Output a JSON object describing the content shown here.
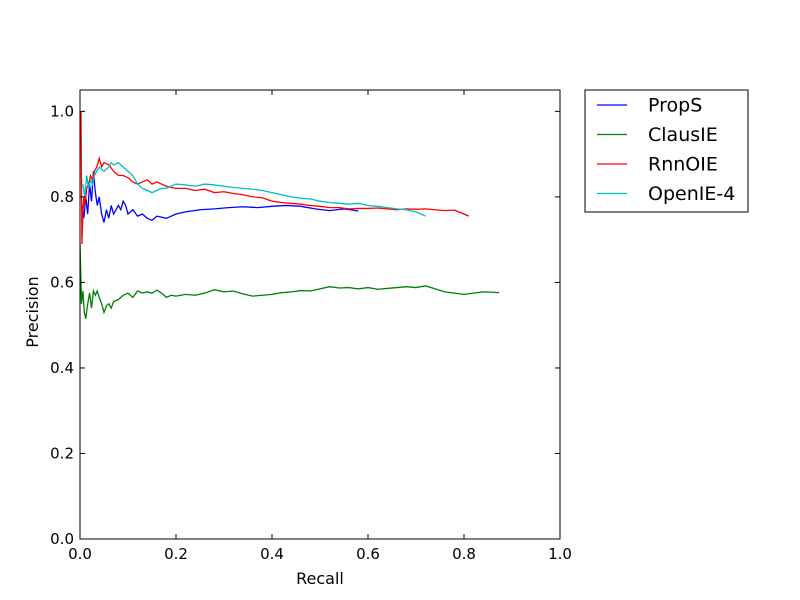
{
  "chart_data": {
    "type": "line",
    "title": "",
    "xlabel": "Recall",
    "ylabel": "Precision",
    "xlim": [
      0.0,
      1.0
    ],
    "ylim": [
      0.0,
      1.05
    ],
    "xticks": [
      "0.0",
      "0.2",
      "0.4",
      "0.6",
      "0.8",
      "1.0"
    ],
    "yticks": [
      "0.0",
      "0.2",
      "0.4",
      "0.6",
      "0.8",
      "1.0"
    ],
    "grid": false,
    "legend_position": "outside-top-right",
    "series": [
      {
        "name": "PropS",
        "color": "#0000ff",
        "points": [
          [
            0.005,
            0.78
          ],
          [
            0.008,
            0.75
          ],
          [
            0.012,
            0.8
          ],
          [
            0.016,
            0.76
          ],
          [
            0.02,
            0.83
          ],
          [
            0.024,
            0.79
          ],
          [
            0.028,
            0.86
          ],
          [
            0.032,
            0.81
          ],
          [
            0.036,
            0.78
          ],
          [
            0.04,
            0.8
          ],
          [
            0.045,
            0.76
          ],
          [
            0.05,
            0.74
          ],
          [
            0.055,
            0.77
          ],
          [
            0.06,
            0.75
          ],
          [
            0.065,
            0.78
          ],
          [
            0.07,
            0.76
          ],
          [
            0.075,
            0.77
          ],
          [
            0.08,
            0.78
          ],
          [
            0.085,
            0.77
          ],
          [
            0.09,
            0.79
          ],
          [
            0.095,
            0.78
          ],
          [
            0.1,
            0.76
          ],
          [
            0.11,
            0.77
          ],
          [
            0.12,
            0.755
          ],
          [
            0.13,
            0.76
          ],
          [
            0.14,
            0.75
          ],
          [
            0.15,
            0.745
          ],
          [
            0.16,
            0.755
          ],
          [
            0.18,
            0.75
          ],
          [
            0.2,
            0.76
          ],
          [
            0.22,
            0.765
          ],
          [
            0.25,
            0.77
          ],
          [
            0.28,
            0.772
          ],
          [
            0.31,
            0.775
          ],
          [
            0.34,
            0.777
          ],
          [
            0.37,
            0.775
          ],
          [
            0.4,
            0.778
          ],
          [
            0.43,
            0.78
          ],
          [
            0.46,
            0.778
          ],
          [
            0.49,
            0.772
          ],
          [
            0.52,
            0.768
          ],
          [
            0.55,
            0.772
          ],
          [
            0.58,
            0.767
          ]
        ]
      },
      {
        "name": "ClausIE",
        "color": "#008000",
        "points": [
          [
            0.0,
            0.69
          ],
          [
            0.003,
            0.55
          ],
          [
            0.006,
            0.58
          ],
          [
            0.009,
            0.53
          ],
          [
            0.012,
            0.515
          ],
          [
            0.016,
            0.55
          ],
          [
            0.02,
            0.575
          ],
          [
            0.024,
            0.54
          ],
          [
            0.028,
            0.58
          ],
          [
            0.032,
            0.57
          ],
          [
            0.036,
            0.58
          ],
          [
            0.04,
            0.565
          ],
          [
            0.045,
            0.55
          ],
          [
            0.05,
            0.53
          ],
          [
            0.055,
            0.545
          ],
          [
            0.06,
            0.55
          ],
          [
            0.065,
            0.54
          ],
          [
            0.07,
            0.555
          ],
          [
            0.08,
            0.56
          ],
          [
            0.09,
            0.57
          ],
          [
            0.1,
            0.575
          ],
          [
            0.11,
            0.565
          ],
          [
            0.12,
            0.58
          ],
          [
            0.13,
            0.575
          ],
          [
            0.14,
            0.578
          ],
          [
            0.15,
            0.575
          ],
          [
            0.16,
            0.582
          ],
          [
            0.17,
            0.575
          ],
          [
            0.18,
            0.565
          ],
          [
            0.19,
            0.57
          ],
          [
            0.2,
            0.568
          ],
          [
            0.22,
            0.572
          ],
          [
            0.24,
            0.57
          ],
          [
            0.26,
            0.575
          ],
          [
            0.28,
            0.583
          ],
          [
            0.3,
            0.578
          ],
          [
            0.32,
            0.58
          ],
          [
            0.34,
            0.573
          ],
          [
            0.36,
            0.568
          ],
          [
            0.38,
            0.57
          ],
          [
            0.4,
            0.572
          ],
          [
            0.42,
            0.576
          ],
          [
            0.44,
            0.578
          ],
          [
            0.46,
            0.581
          ],
          [
            0.48,
            0.58
          ],
          [
            0.5,
            0.585
          ],
          [
            0.52,
            0.59
          ],
          [
            0.54,
            0.587
          ],
          [
            0.56,
            0.588
          ],
          [
            0.58,
            0.585
          ],
          [
            0.6,
            0.588
          ],
          [
            0.62,
            0.584
          ],
          [
            0.64,
            0.586
          ],
          [
            0.66,
            0.588
          ],
          [
            0.68,
            0.59
          ],
          [
            0.7,
            0.588
          ],
          [
            0.72,
            0.592
          ],
          [
            0.74,
            0.585
          ],
          [
            0.76,
            0.578
          ],
          [
            0.78,
            0.575
          ],
          [
            0.8,
            0.572
          ],
          [
            0.82,
            0.575
          ],
          [
            0.84,
            0.578
          ],
          [
            0.86,
            0.577
          ],
          [
            0.873,
            0.576
          ]
        ]
      },
      {
        "name": "RnnOIE",
        "color": "#ff0000",
        "points": [
          [
            0.002,
            1.0
          ],
          [
            0.004,
            0.69
          ],
          [
            0.006,
            0.76
          ],
          [
            0.008,
            0.8
          ],
          [
            0.01,
            0.78
          ],
          [
            0.014,
            0.82
          ],
          [
            0.018,
            0.83
          ],
          [
            0.022,
            0.85
          ],
          [
            0.026,
            0.84
          ],
          [
            0.03,
            0.86
          ],
          [
            0.035,
            0.87
          ],
          [
            0.04,
            0.89
          ],
          [
            0.045,
            0.87
          ],
          [
            0.05,
            0.88
          ],
          [
            0.06,
            0.875
          ],
          [
            0.07,
            0.86
          ],
          [
            0.08,
            0.85
          ],
          [
            0.09,
            0.85
          ],
          [
            0.1,
            0.845
          ],
          [
            0.11,
            0.835
          ],
          [
            0.12,
            0.83
          ],
          [
            0.13,
            0.835
          ],
          [
            0.14,
            0.84
          ],
          [
            0.15,
            0.83
          ],
          [
            0.16,
            0.835
          ],
          [
            0.18,
            0.825
          ],
          [
            0.2,
            0.82
          ],
          [
            0.22,
            0.82
          ],
          [
            0.24,
            0.815
          ],
          [
            0.26,
            0.818
          ],
          [
            0.28,
            0.81
          ],
          [
            0.3,
            0.812
          ],
          [
            0.32,
            0.808
          ],
          [
            0.34,
            0.805
          ],
          [
            0.36,
            0.8
          ],
          [
            0.38,
            0.798
          ],
          [
            0.4,
            0.79
          ],
          [
            0.42,
            0.787
          ],
          [
            0.44,
            0.785
          ],
          [
            0.46,
            0.783
          ],
          [
            0.48,
            0.78
          ],
          [
            0.5,
            0.778
          ],
          [
            0.52,
            0.775
          ],
          [
            0.54,
            0.775
          ],
          [
            0.56,
            0.772
          ],
          [
            0.58,
            0.773
          ],
          [
            0.6,
            0.773
          ],
          [
            0.62,
            0.774
          ],
          [
            0.64,
            0.772
          ],
          [
            0.66,
            0.77
          ],
          [
            0.68,
            0.772
          ],
          [
            0.7,
            0.771
          ],
          [
            0.72,
            0.772
          ],
          [
            0.74,
            0.77
          ],
          [
            0.76,
            0.768
          ],
          [
            0.78,
            0.769
          ],
          [
            0.8,
            0.76
          ],
          [
            0.81,
            0.755
          ]
        ]
      },
      {
        "name": "OpenIE-4",
        "color": "#00bfbf",
        "points": [
          [
            0.006,
            0.83
          ],
          [
            0.01,
            0.8
          ],
          [
            0.014,
            0.85
          ],
          [
            0.018,
            0.82
          ],
          [
            0.022,
            0.84
          ],
          [
            0.026,
            0.83
          ],
          [
            0.03,
            0.85
          ],
          [
            0.035,
            0.86
          ],
          [
            0.04,
            0.87
          ],
          [
            0.05,
            0.86
          ],
          [
            0.06,
            0.87
          ],
          [
            0.065,
            0.88
          ],
          [
            0.07,
            0.875
          ],
          [
            0.08,
            0.88
          ],
          [
            0.09,
            0.87
          ],
          [
            0.1,
            0.86
          ],
          [
            0.11,
            0.85
          ],
          [
            0.12,
            0.83
          ],
          [
            0.13,
            0.82
          ],
          [
            0.14,
            0.815
          ],
          [
            0.15,
            0.81
          ],
          [
            0.16,
            0.815
          ],
          [
            0.17,
            0.82
          ],
          [
            0.18,
            0.82
          ],
          [
            0.2,
            0.83
          ],
          [
            0.22,
            0.828
          ],
          [
            0.24,
            0.825
          ],
          [
            0.26,
            0.83
          ],
          [
            0.28,
            0.828
          ],
          [
            0.3,
            0.825
          ],
          [
            0.32,
            0.822
          ],
          [
            0.34,
            0.82
          ],
          [
            0.36,
            0.818
          ],
          [
            0.38,
            0.815
          ],
          [
            0.4,
            0.81
          ],
          [
            0.42,
            0.805
          ],
          [
            0.44,
            0.8
          ],
          [
            0.46,
            0.797
          ],
          [
            0.48,
            0.795
          ],
          [
            0.5,
            0.79
          ],
          [
            0.52,
            0.787
          ],
          [
            0.54,
            0.785
          ],
          [
            0.56,
            0.783
          ],
          [
            0.58,
            0.785
          ],
          [
            0.6,
            0.78
          ],
          [
            0.62,
            0.778
          ],
          [
            0.64,
            0.775
          ],
          [
            0.66,
            0.772
          ],
          [
            0.68,
            0.77
          ],
          [
            0.7,
            0.765
          ],
          [
            0.71,
            0.76
          ],
          [
            0.72,
            0.755
          ]
        ]
      }
    ]
  }
}
